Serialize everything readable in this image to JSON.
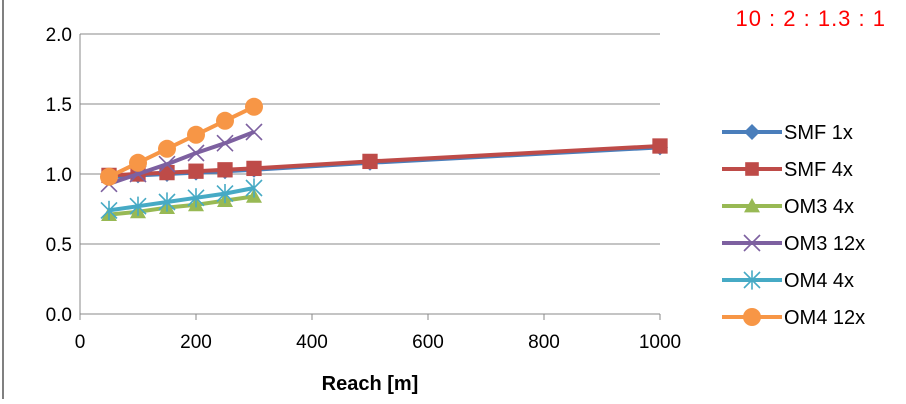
{
  "annotation": "10 : 2 : 1.3 : 1",
  "chart_data": {
    "type": "line",
    "xlabel": "Reach [m]",
    "ylabel": "",
    "xlim": [
      0,
      1000
    ],
    "ylim": [
      0,
      2.0
    ],
    "x_ticks": [
      "0",
      "200",
      "400",
      "600",
      "800",
      "1000"
    ],
    "y_ticks": [
      "0.0",
      "0.5",
      "1.0",
      "1.5",
      "2.0"
    ],
    "grid": "horizontal",
    "legend_position": "right",
    "series": [
      {
        "name": "SMF 1x",
        "color": "#4a7ebb",
        "marker": "diamond",
        "points": [
          [
            50,
            0.98
          ],
          [
            100,
            0.99
          ],
          [
            150,
            1.0
          ],
          [
            200,
            1.01
          ],
          [
            250,
            1.02
          ],
          [
            300,
            1.03
          ],
          [
            500,
            1.08
          ],
          [
            1000,
            1.19
          ]
        ]
      },
      {
        "name": "SMF 4x",
        "color": "#be4b48",
        "marker": "square",
        "points": [
          [
            50,
            0.99
          ],
          [
            100,
            1.0
          ],
          [
            150,
            1.01
          ],
          [
            200,
            1.02
          ],
          [
            250,
            1.03
          ],
          [
            300,
            1.04
          ],
          [
            500,
            1.09
          ],
          [
            1000,
            1.2
          ]
        ]
      },
      {
        "name": "OM3 4x",
        "color": "#98b954",
        "marker": "triangle",
        "points": [
          [
            50,
            0.71
          ],
          [
            100,
            0.73
          ],
          [
            150,
            0.76
          ],
          [
            200,
            0.78
          ],
          [
            250,
            0.81
          ],
          [
            300,
            0.84
          ]
        ]
      },
      {
        "name": "OM3 12x",
        "color": "#7d60a0",
        "marker": "x",
        "points": [
          [
            50,
            0.93
          ],
          [
            100,
            1.0
          ],
          [
            150,
            1.07
          ],
          [
            200,
            1.15
          ],
          [
            250,
            1.22
          ],
          [
            300,
            1.3
          ]
        ]
      },
      {
        "name": "OM4 4x",
        "color": "#46aac5",
        "marker": "star",
        "points": [
          [
            50,
            0.74
          ],
          [
            100,
            0.77
          ],
          [
            150,
            0.8
          ],
          [
            200,
            0.83
          ],
          [
            250,
            0.86
          ],
          [
            300,
            0.9
          ]
        ]
      },
      {
        "name": "OM4 12x",
        "color": "#f79646",
        "marker": "circle",
        "points": [
          [
            50,
            0.98
          ],
          [
            100,
            1.08
          ],
          [
            150,
            1.18
          ],
          [
            200,
            1.28
          ],
          [
            250,
            1.38
          ],
          [
            300,
            1.48
          ]
        ]
      }
    ]
  }
}
